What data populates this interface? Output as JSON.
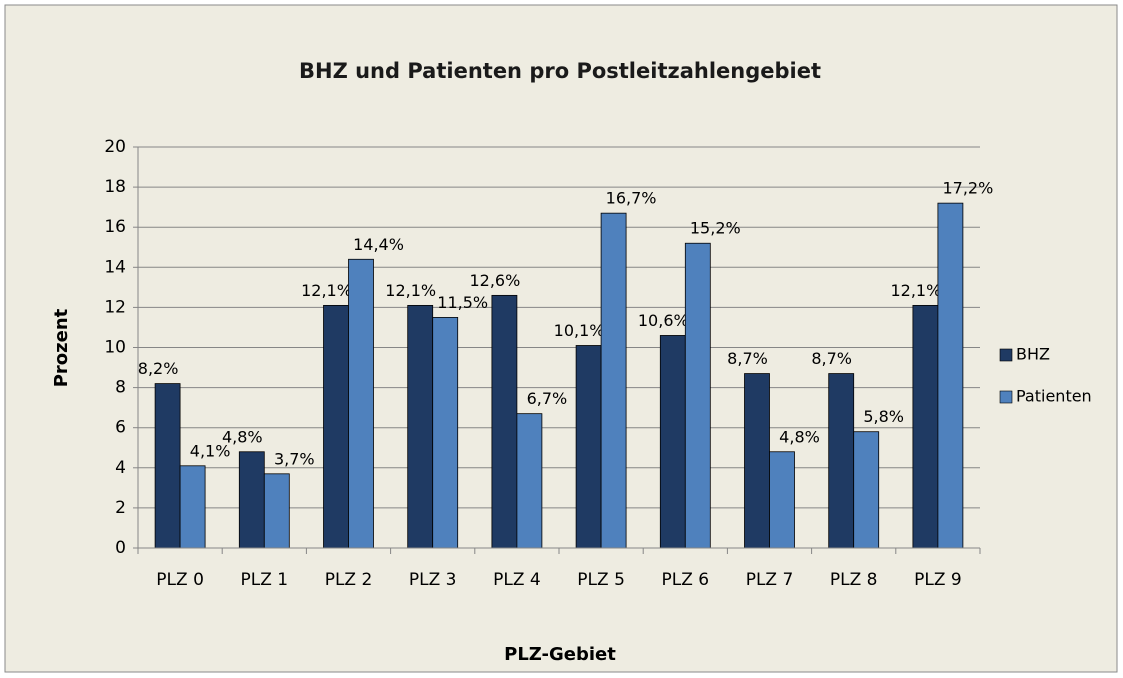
{
  "chart_data": {
    "type": "bar",
    "title": "BHZ und Patienten pro Postleitzahlengebiet",
    "x_label": "PLZ-Gebiet",
    "y_label": "Prozent",
    "categories": [
      "PLZ 0",
      "PLZ 1",
      "PLZ 2",
      "PLZ 3",
      "PLZ 4",
      "PLZ 5",
      "PLZ 6",
      "PLZ 7",
      "PLZ 8",
      "PLZ 9"
    ],
    "series": [
      {
        "name": "BHZ",
        "color": "#1f3a63",
        "values": [
          8.2,
          4.8,
          12.1,
          12.1,
          12.6,
          10.1,
          10.6,
          8.7,
          8.7,
          12.1
        ],
        "value_labels": [
          "8,2%",
          "4,8%",
          "12,1%",
          "12,1%",
          "12,6%",
          "10,1%",
          "10,6%",
          "8,7%",
          "8,7%",
          "12,1%"
        ]
      },
      {
        "name": "Patienten",
        "color": "#4f81bd",
        "values": [
          4.1,
          3.7,
          14.4,
          11.5,
          6.7,
          16.7,
          15.2,
          4.8,
          5.8,
          17.2
        ],
        "value_labels": [
          "4,1%",
          "3,7%",
          "14,4%",
          "11,5%",
          "6,7%",
          "16,7%",
          "15,2%",
          "4,8%",
          "5,8%",
          "17,2%"
        ]
      }
    ],
    "ylim": [
      0,
      20
    ],
    "yticks": [
      0,
      2,
      4,
      6,
      8,
      10,
      12,
      14,
      16,
      18,
      20
    ],
    "grid": true,
    "legend": "right"
  }
}
